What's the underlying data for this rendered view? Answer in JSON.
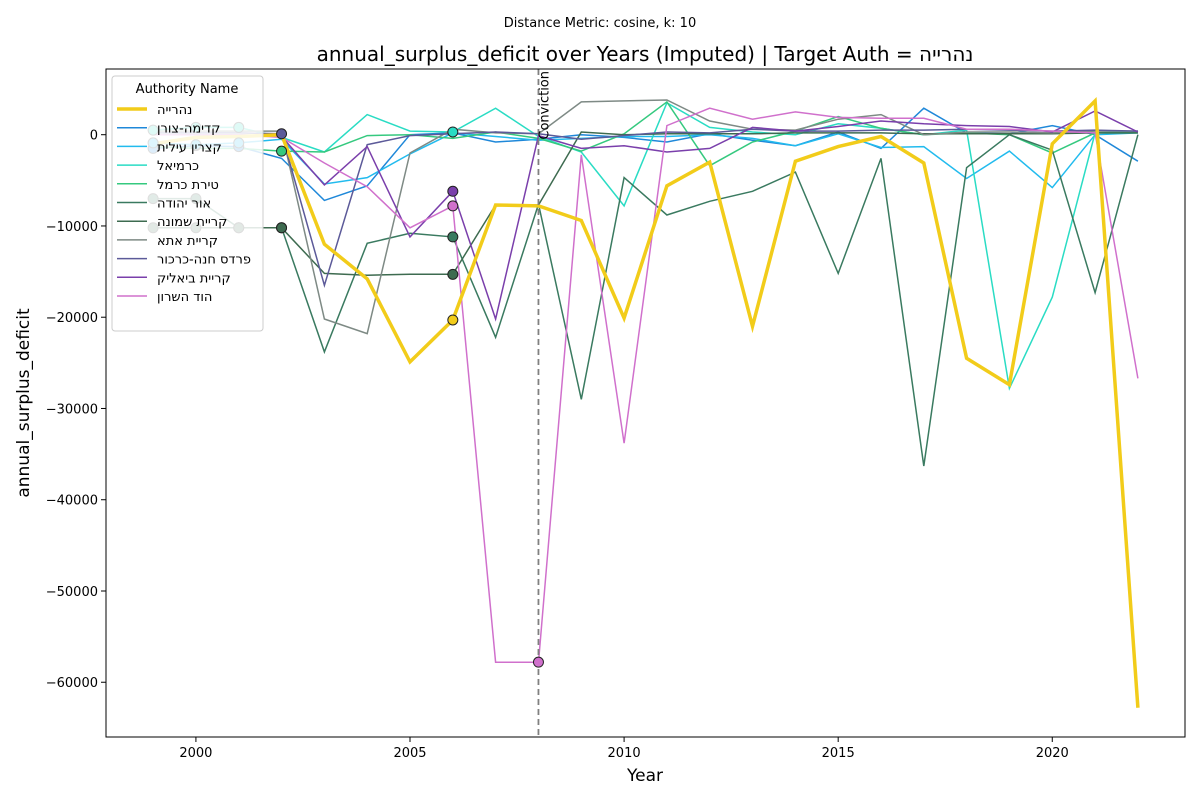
{
  "suptitle": "Distance Metric: cosine, k: 10",
  "chart_data": {
    "type": "line",
    "title": "annual_surplus_deficit over Years (Imputed) | Target Auth = נהרייה",
    "xlabel": "Year",
    "ylabel": "annual_surplus_deficit",
    "xlim": [
      1997.9,
      2023.1
    ],
    "ylim": [
      -66000,
      7200
    ],
    "xticks": [
      2000,
      2005,
      2010,
      2015,
      2020
    ],
    "yticks": [
      -60000,
      -50000,
      -40000,
      -30000,
      -20000,
      -10000,
      0
    ],
    "xtick_labels": [
      "2000",
      "2005",
      "2010",
      "2015",
      "2020"
    ],
    "ytick_labels": [
      "−60000",
      "−50000",
      "−40000",
      "−30000",
      "−20000",
      "−10000",
      "0"
    ],
    "grid": false,
    "legend_title": "Authority Name",
    "legend_position": "upper-left",
    "vline": {
      "x": 2008,
      "label": "Conviction",
      "color": "#808080"
    },
    "x": [
      1999,
      2000,
      2001,
      2002,
      2003,
      2004,
      2005,
      2006,
      2007,
      2008,
      2009,
      2010,
      2011,
      2012,
      2013,
      2014,
      2015,
      2016,
      2017,
      2018,
      2019,
      2020,
      2021,
      2022
    ],
    "series": [
      {
        "name": "נהרייה",
        "color": "#f2cc1a",
        "width": 3.5,
        "values": [
          -1000,
          -300,
          -200,
          0,
          -12000,
          -15800,
          -24900,
          -20300,
          -7700,
          -7800,
          -9400,
          -20100,
          -5600,
          -3000,
          -21000,
          -2900,
          -1300,
          -200,
          -3100,
          -24500,
          -27400,
          -1000,
          3700,
          -62800
        ],
        "imputed_markers": [
          2006
        ]
      },
      {
        "name": "קדימה-צורן",
        "color": "#1f88d9",
        "width": 1.5,
        "values": [
          -1500,
          -1200,
          -1300,
          -2600,
          -7200,
          -5600,
          0,
          200,
          -800,
          -500,
          0,
          -300,
          -800,
          100,
          -600,
          -1200,
          300,
          -1500,
          2900,
          200,
          100,
          1000,
          0,
          -2900
        ],
        "imputed_markers": [
          1999,
          2000,
          2001
        ]
      },
      {
        "name": "קצרין עילית",
        "color": "#22bbee",
        "width": 1.5,
        "values": [
          -900,
          -1100,
          -900,
          -500,
          -5400,
          -4700,
          -2100,
          200,
          -200,
          -600,
          -400,
          -200,
          -200,
          0,
          -400,
          -1200,
          100,
          -1400,
          -1300,
          -4800,
          -1800,
          -5800,
          0,
          200
        ],
        "imputed_markers": [
          1999,
          2000,
          2001
        ]
      },
      {
        "name": "כרמיאל",
        "color": "#2adcc4",
        "width": 1.5,
        "values": [
          500,
          800,
          800,
          -300,
          -1900,
          2200,
          400,
          300,
          2900,
          -200,
          -1900,
          -7800,
          3500,
          800,
          300,
          0,
          1200,
          700,
          0,
          500,
          -27800,
          -17800,
          200,
          400
        ],
        "imputed_markers": [
          1999,
          2000,
          2001,
          2006
        ]
      },
      {
        "name": "טירת כרמל",
        "color": "#35c97f",
        "width": 1.5,
        "values": [
          -1300,
          -1500,
          -1500,
          -1800,
          -1900,
          -100,
          0,
          -400,
          300,
          -400,
          -1800,
          100,
          3600,
          -3400,
          -800,
          400,
          2000,
          700,
          0,
          200,
          0,
          -2000,
          200,
          200
        ],
        "imputed_markers": [
          2002
        ]
      },
      {
        "name": "אור יהודה",
        "color": "#3a7a60",
        "width": 1.5,
        "values": [
          -7000,
          -7000,
          -10200,
          -10200,
          -23800,
          -11900,
          -10800,
          -11200,
          -22200,
          -7600,
          -29000,
          -4700,
          -8800,
          -7300,
          -6200,
          -4100,
          -15200,
          -2600,
          -36300,
          -3600,
          0,
          -1700,
          -17300,
          0
        ],
        "imputed_markers": [
          1999,
          2000,
          2001,
          2002,
          2006
        ]
      },
      {
        "name": "קריית שמונה",
        "color": "#3e6b50",
        "width": 1.5,
        "values": [
          -10200,
          -10200,
          -10200,
          -10200,
          -15200,
          -15400,
          -15300,
          -15300,
          -7700,
          -7700,
          300,
          0,
          100,
          100,
          100,
          200,
          200,
          200,
          100,
          100,
          100,
          100,
          200,
          200
        ],
        "imputed_markers": [
          1999,
          2000,
          2001,
          2002,
          2006
        ]
      },
      {
        "name": "קריית אתא",
        "color": "#7e8a85",
        "width": 1.5,
        "values": [
          400,
          400,
          400,
          400,
          -20200,
          -21800,
          -2000,
          600,
          200,
          100,
          3600,
          3700,
          3800,
          1500,
          600,
          500,
          1700,
          2200,
          0,
          300,
          300,
          200,
          400,
          400
        ],
        "imputed_markers": []
      },
      {
        "name": "פרדס חנה-כרכור",
        "color": "#5c5a99",
        "width": 1.5,
        "values": [
          200,
          200,
          200,
          100,
          -16500,
          -1100,
          -100,
          100,
          300,
          100,
          -500,
          -100,
          300,
          200,
          600,
          400,
          400,
          500,
          500,
          600,
          500,
          400,
          500,
          400
        ],
        "imputed_markers": [
          2002
        ]
      },
      {
        "name": "קריית ביאליק",
        "color": "#7a3fab",
        "width": 1.5,
        "values": [
          0,
          0,
          0,
          -200,
          -5500,
          -1300,
          -11200,
          -6200,
          -20200,
          -100,
          -1500,
          -1200,
          -1900,
          -1500,
          800,
          400,
          900,
          1500,
          1200,
          1000,
          900,
          300,
          2600,
          300
        ],
        "imputed_markers": [
          2006
        ]
      },
      {
        "name": "הוד השרון",
        "color": "#d070cc",
        "width": 1.5,
        "values": [
          0,
          0,
          0,
          -300,
          -3100,
          -5700,
          -10200,
          -7800,
          -57800,
          -57800,
          -2200,
          -33800,
          1000,
          2900,
          1700,
          2500,
          1900,
          1800,
          1800,
          600,
          600,
          400,
          200,
          -26700
        ],
        "imputed_markers": [
          2006,
          2008
        ]
      }
    ]
  }
}
